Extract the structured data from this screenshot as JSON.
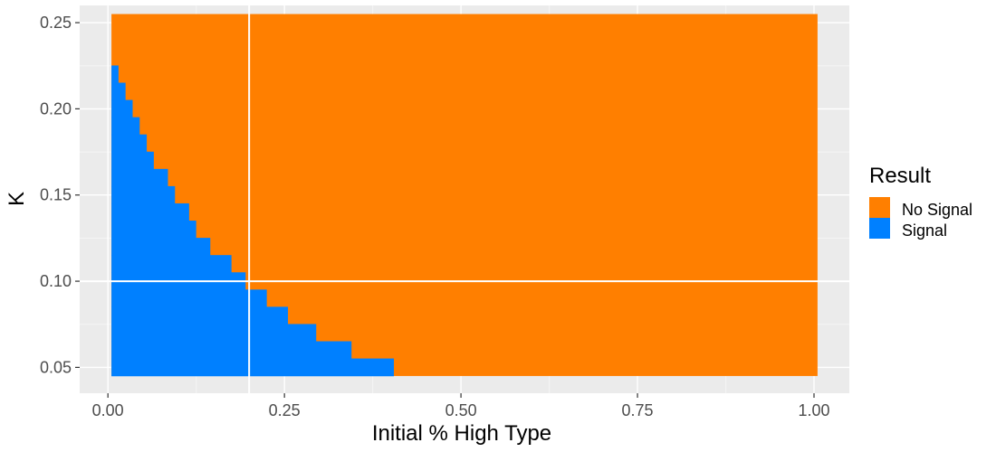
{
  "chart_data": {
    "type": "heatmap",
    "xlabel": "Initial % High Type",
    "ylabel": "K",
    "xlim": [
      -0.04,
      1.05
    ],
    "ylim": [
      0.035,
      0.26
    ],
    "x_ticks": [
      0.0,
      0.25,
      0.5,
      0.75,
      1.0
    ],
    "x_tick_labels": [
      "0.00",
      "0.25",
      "0.50",
      "0.75",
      "1.00"
    ],
    "y_ticks": [
      0.05,
      0.1,
      0.15,
      0.2,
      0.25
    ],
    "y_tick_labels": [
      "0.05",
      "0.10",
      "0.15",
      "0.20",
      "0.25"
    ],
    "grid": true,
    "region_x_range": [
      0.005,
      1.005
    ],
    "region_k_range": [
      0.045,
      0.255
    ],
    "k_step": 0.01,
    "signal_boundary": [
      {
        "k": 0.05,
        "x_max": 0.405
      },
      {
        "k": 0.06,
        "x_max": 0.345
      },
      {
        "k": 0.07,
        "x_max": 0.295
      },
      {
        "k": 0.08,
        "x_max": 0.255
      },
      {
        "k": 0.09,
        "x_max": 0.225
      },
      {
        "k": 0.1,
        "x_max": 0.195
      },
      {
        "k": 0.11,
        "x_max": 0.175
      },
      {
        "k": 0.12,
        "x_max": 0.145
      },
      {
        "k": 0.13,
        "x_max": 0.125
      },
      {
        "k": 0.14,
        "x_max": 0.115
      },
      {
        "k": 0.15,
        "x_max": 0.095
      },
      {
        "k": 0.16,
        "x_max": 0.085
      },
      {
        "k": 0.17,
        "x_max": 0.065
      },
      {
        "k": 0.18,
        "x_max": 0.055
      },
      {
        "k": 0.19,
        "x_max": 0.045
      },
      {
        "k": 0.2,
        "x_max": 0.035
      },
      {
        "k": 0.21,
        "x_max": 0.025
      },
      {
        "k": 0.22,
        "x_max": 0.015
      }
    ],
    "reference_lines": {
      "vline_x": 0.2,
      "hline_k": 0.1
    },
    "legend": {
      "title": "Result",
      "position": "right",
      "items": [
        {
          "label": "No Signal",
          "color": "#FF7F00"
        },
        {
          "label": "Signal",
          "color": "#0080FF"
        }
      ]
    },
    "colors": {
      "panel_background": "#EBEBEB",
      "grid_major": "#FFFFFF",
      "grid_minor": "#F5F5F5",
      "reference_line": "#FFFFFF"
    }
  }
}
